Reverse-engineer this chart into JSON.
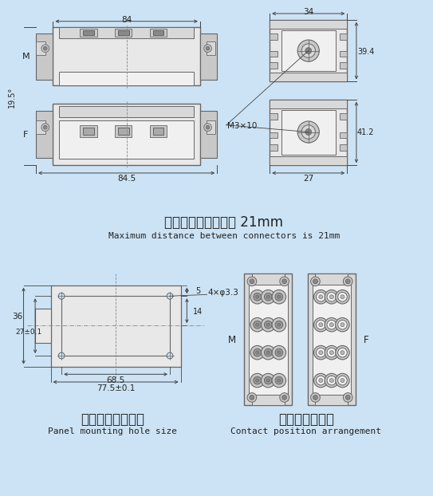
{
  "bg_color": "#cce3f5",
  "line_color": "#666666",
  "dark_color": "#444444",
  "text_color": "#222222",
  "fig_width": 5.19,
  "fig_height": 6.17,
  "chinese_text1": "接插体之间最大距离 21mm",
  "english_text1": "Maximum distance between connectors is 21mm",
  "chinese_text2": "面板安装开孔尺寸",
  "english_text2": "Panel mounting hole size",
  "chinese_text3": "接触面孔位排布",
  "english_text3": "Contact position arrangement",
  "dim_84": "84",
  "dim_34": "34",
  "dim_19_5": "19.5°",
  "dim_39_4": "39.4",
  "dim_M3x10": "M3×10",
  "dim_41_2": "41.2",
  "dim_84_5": "84.5",
  "dim_27": "27",
  "dim_4x3_3": "4×φ3.3",
  "dim_5": "5",
  "dim_14": "14",
  "dim_36": "36",
  "dim_27_01": "27±0.1",
  "dim_68_5": "68.5",
  "dim_77_5": "77.5±0.1",
  "label_M": "M",
  "label_F": "F",
  "body_fill": "#e8e8e8",
  "body_fill2": "#d8d8d8",
  "inner_fill": "#f0f0f0",
  "bracket_fill": "#c8c8c8",
  "pin_fill": "#b0b0b0",
  "dark_fill": "#888888"
}
